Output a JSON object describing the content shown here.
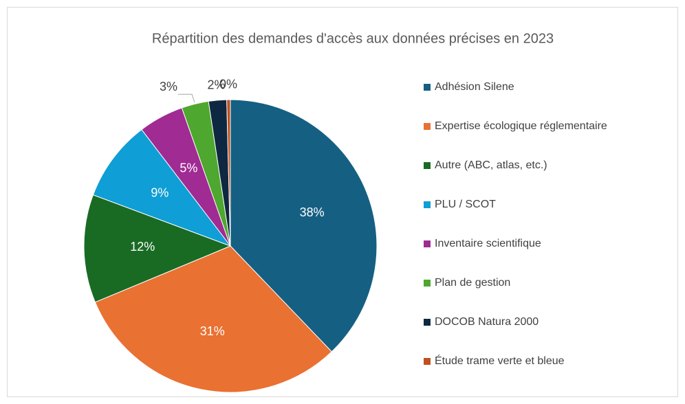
{
  "chart_data": {
    "type": "pie",
    "title": "Répartition des demandes d'accès aux données précises en 2023",
    "categories": [
      "Adhésion Silene",
      "Expertise écologique réglementaire",
      "Autre (ABC, atlas, etc.)",
      "PLU / SCOT",
      "Inventaire scientifique",
      "Plan de gestion",
      "DOCOB Natura 2000",
      "Étude trame verte et bleue"
    ],
    "values": [
      38,
      31,
      12,
      9,
      5,
      3,
      2,
      0.4
    ],
    "value_labels": [
      "38%",
      "31%",
      "12%",
      "9%",
      "5%",
      "3%",
      "2%",
      "0%"
    ],
    "colors": [
      "#156082",
      "#e97132",
      "#196b24",
      "#0f9ed5",
      "#a02b93",
      "#4ea72e",
      "#0e2841",
      "#c0501f"
    ],
    "legend": "right"
  }
}
